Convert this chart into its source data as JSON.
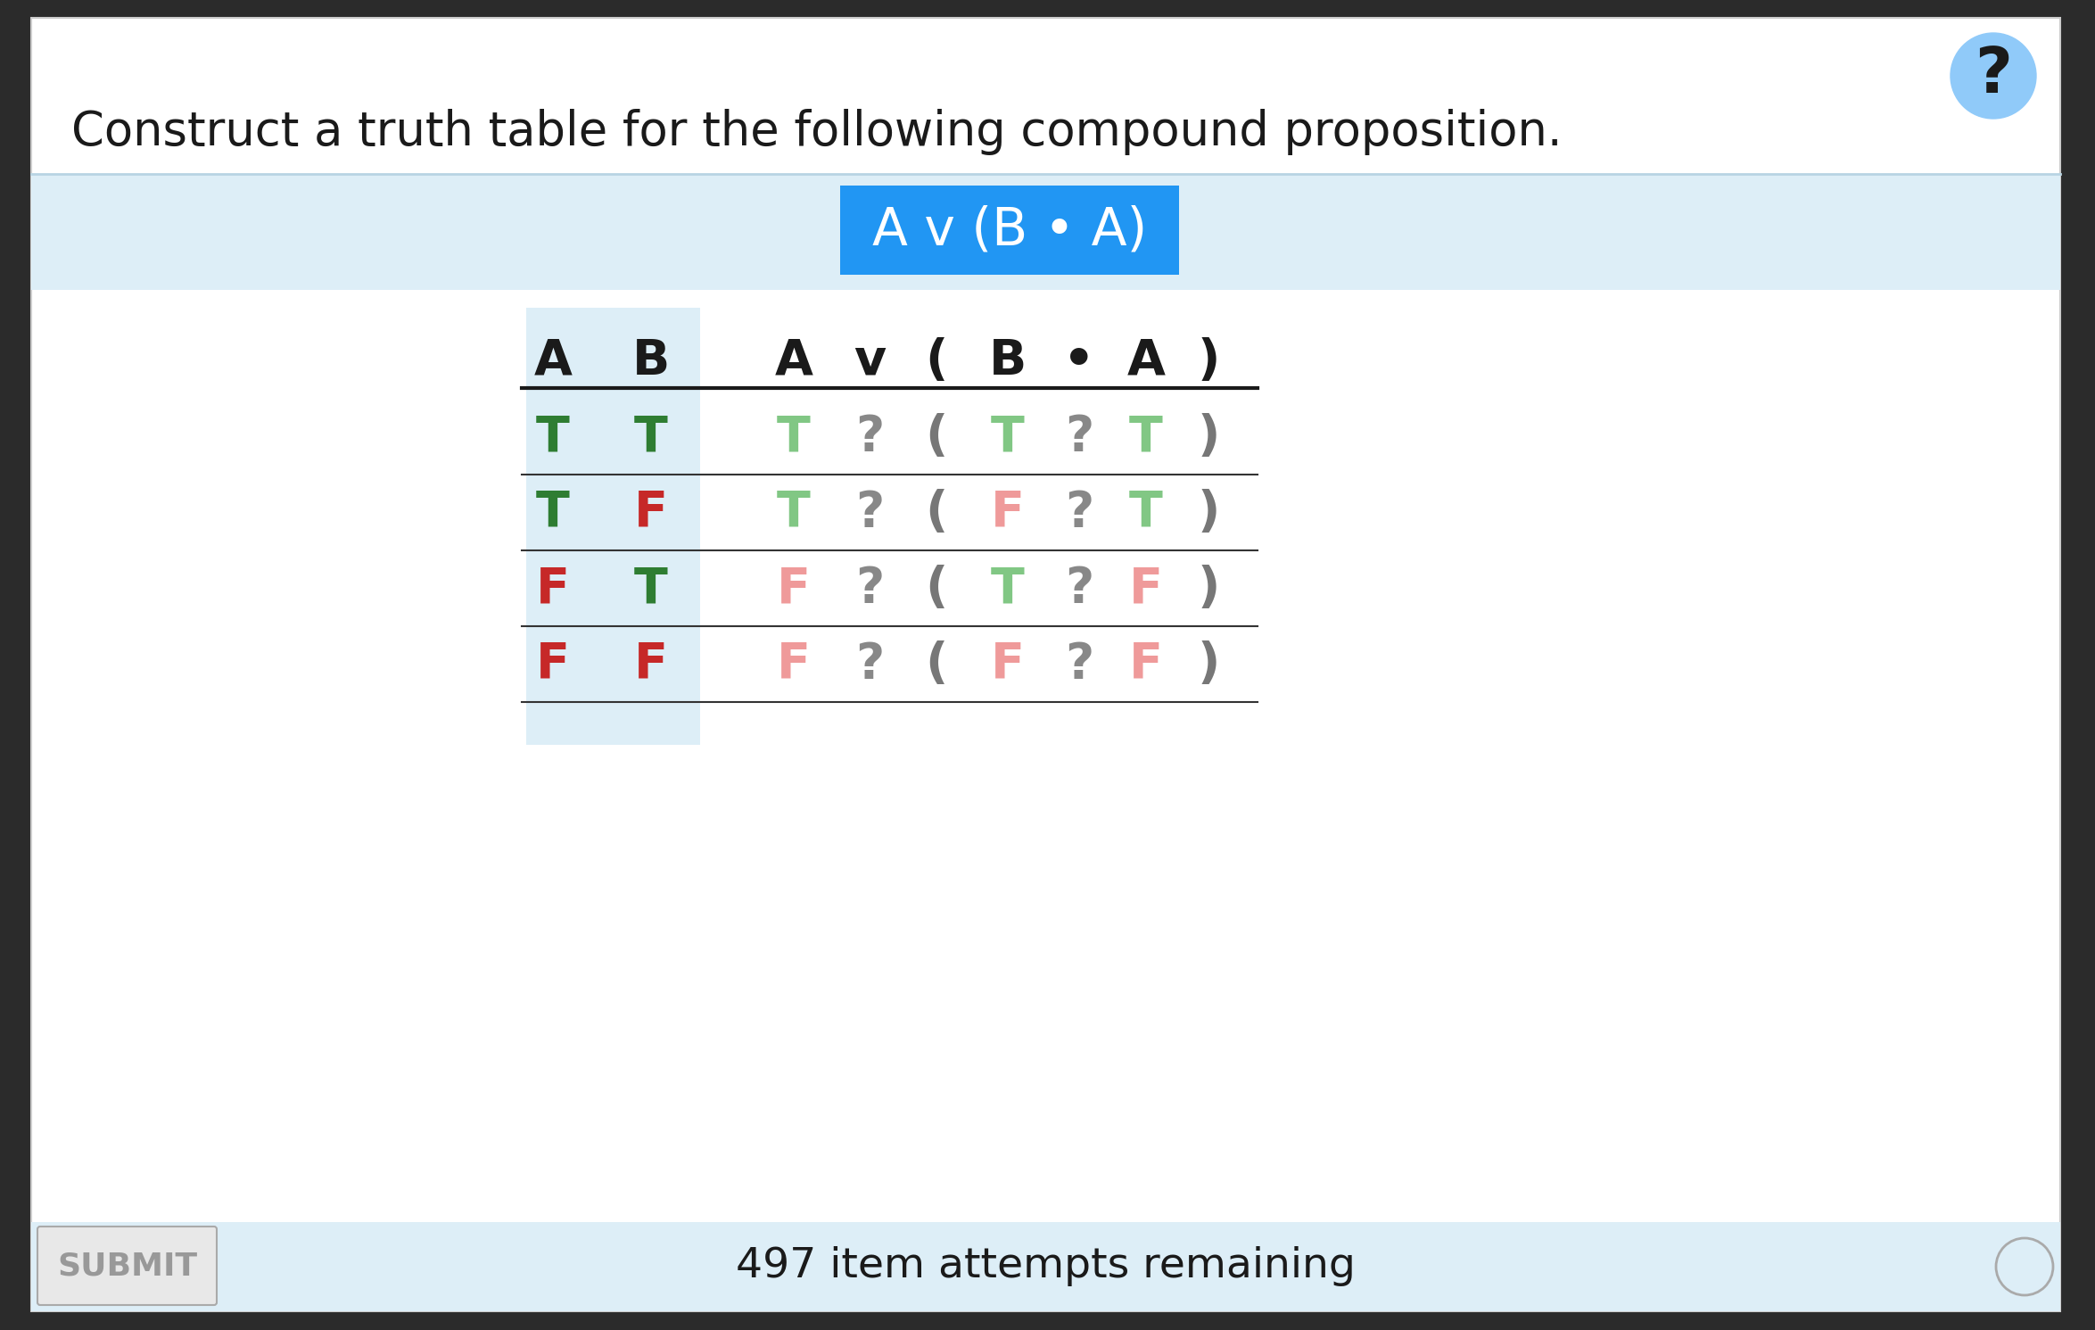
{
  "title": "Construct a truth table for the following compound proposition.",
  "formula": "A v (B • A)",
  "bg_color": "#ffffff",
  "light_blue": "#ddeef7",
  "blue_banner": "#2196f3",
  "outer_bg": "#2b2b2b",
  "rows": [
    {
      "A": "T",
      "B": "T",
      "A_color": "#2e7d32",
      "B_color": "#2e7d32",
      "cells": [
        "T",
        "?",
        "T",
        "?",
        "T"
      ],
      "cell_colors": [
        "#81c784",
        "#888888",
        "#81c784",
        "#888888",
        "#81c784"
      ]
    },
    {
      "A": "T",
      "B": "F",
      "A_color": "#2e7d32",
      "B_color": "#c62828",
      "cells": [
        "T",
        "?",
        "F",
        "?",
        "T"
      ],
      "cell_colors": [
        "#81c784",
        "#888888",
        "#ef9a9a",
        "#888888",
        "#81c784"
      ]
    },
    {
      "A": "F",
      "B": "T",
      "A_color": "#c62828",
      "B_color": "#2e7d32",
      "cells": [
        "F",
        "?",
        "T",
        "?",
        "F"
      ],
      "cell_colors": [
        "#ef9a9a",
        "#888888",
        "#81c784",
        "#888888",
        "#ef9a9a"
      ]
    },
    {
      "A": "F",
      "B": "F",
      "A_color": "#c62828",
      "B_color": "#c62828",
      "cells": [
        "F",
        "?",
        "F",
        "?",
        "F"
      ],
      "cell_colors": [
        "#ef9a9a",
        "#888888",
        "#ef9a9a",
        "#888888",
        "#ef9a9a"
      ]
    }
  ],
  "submit_text": "SUBMIT",
  "bottom_text": "497 item attempts remaining",
  "question_circle_color": "#90caf9"
}
